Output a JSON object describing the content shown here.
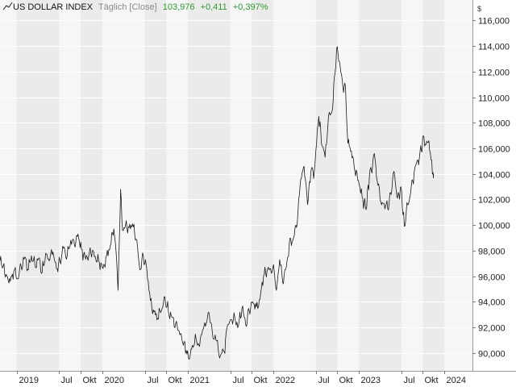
{
  "header": {
    "icon": "line-chart-icon",
    "symbol": "US DOLLAR INDEX",
    "mode": "Täglich [Close]",
    "last": "103,976",
    "change": "+0,411",
    "change_pct": "+0,397%",
    "change_color": "#2a9d2a"
  },
  "chart_data": {
    "type": "line",
    "title": "US DOLLAR INDEX",
    "currency_label": "$",
    "y_axis_side": "right",
    "grid": true,
    "ylim": [
      88.6,
      117.6
    ],
    "xlim": [
      "2018-10-22",
      "2024-04-30"
    ],
    "y_ticks": [
      {
        "value": 90,
        "label": "90,000"
      },
      {
        "value": 92,
        "label": "92,000"
      },
      {
        "value": 94,
        "label": "94,000"
      },
      {
        "value": 96,
        "label": "96,000"
      },
      {
        "value": 98,
        "label": "98,000"
      },
      {
        "value": 100,
        "label": "100,000"
      },
      {
        "value": 102,
        "label": "102,000"
      },
      {
        "value": 104,
        "label": "104,000"
      },
      {
        "value": 106,
        "label": "106,000"
      },
      {
        "value": 108,
        "label": "108,000"
      },
      {
        "value": 110,
        "label": "110,000"
      },
      {
        "value": 112,
        "label": "112,000"
      },
      {
        "value": 114,
        "label": "114,000"
      },
      {
        "value": 116,
        "label": "116,000"
      }
    ],
    "x_ticks": [
      {
        "date": "2019-01-01",
        "label": "2019"
      },
      {
        "date": "2019-07-01",
        "label": "Jul"
      },
      {
        "date": "2019-10-01",
        "label": "Okt"
      },
      {
        "date": "2020-01-01",
        "label": "2020"
      },
      {
        "date": "2020-07-01",
        "label": "Jul"
      },
      {
        "date": "2020-10-01",
        "label": "Okt"
      },
      {
        "date": "2021-01-01",
        "label": "2021"
      },
      {
        "date": "2021-07-01",
        "label": "Jul"
      },
      {
        "date": "2021-10-01",
        "label": "Okt"
      },
      {
        "date": "2022-01-01",
        "label": "2022"
      },
      {
        "date": "2022-07-01",
        "label": "Jul"
      },
      {
        "date": "2022-10-01",
        "label": "Okt"
      },
      {
        "date": "2023-01-01",
        "label": "2023"
      },
      {
        "date": "2023-07-01",
        "label": "Jul"
      },
      {
        "date": "2023-10-01",
        "label": "Okt"
      },
      {
        "date": "2024-01-01",
        "label": "2024"
      }
    ],
    "series": [
      {
        "color": "#1a1a1a",
        "points": [
          [
            "2018-10-22",
            97.2
          ],
          [
            "2018-11-05",
            96.8
          ],
          [
            "2018-11-20",
            96.0
          ],
          [
            "2018-12-05",
            95.6
          ],
          [
            "2018-12-20",
            96.4
          ],
          [
            "2019-01-05",
            95.8
          ],
          [
            "2019-01-20",
            96.8
          ],
          [
            "2019-02-05",
            97.5
          ],
          [
            "2019-02-20",
            96.5
          ],
          [
            "2019-03-05",
            97.6
          ],
          [
            "2019-03-20",
            96.9
          ],
          [
            "2019-04-05",
            97.4
          ],
          [
            "2019-04-20",
            96.3
          ],
          [
            "2019-05-05",
            97.8
          ],
          [
            "2019-05-20",
            97.2
          ],
          [
            "2019-06-05",
            97.9
          ],
          [
            "2019-06-20",
            96.6
          ],
          [
            "2019-07-05",
            97.2
          ],
          [
            "2019-07-20",
            98.2
          ],
          [
            "2019-08-05",
            97.6
          ],
          [
            "2019-08-20",
            98.8
          ],
          [
            "2019-09-05",
            98.4
          ],
          [
            "2019-09-20",
            99.3
          ],
          [
            "2019-10-05",
            98.1
          ],
          [
            "2019-10-20",
            97.5
          ],
          [
            "2019-11-05",
            97.6
          ],
          [
            "2019-11-20",
            98.0
          ],
          [
            "2019-12-05",
            97.3
          ],
          [
            "2019-12-20",
            97.1
          ],
          [
            "2020-01-05",
            96.6
          ],
          [
            "2020-01-20",
            97.6
          ],
          [
            "2020-02-05",
            98.4
          ],
          [
            "2020-02-20",
            99.7
          ],
          [
            "2020-03-01",
            97.8
          ],
          [
            "2020-03-09",
            94.9
          ],
          [
            "2020-03-20",
            102.8
          ],
          [
            "2020-03-28",
            99.6
          ],
          [
            "2020-04-10",
            100.0
          ],
          [
            "2020-04-25",
            99.8
          ],
          [
            "2020-05-10",
            100.1
          ],
          [
            "2020-05-25",
            98.9
          ],
          [
            "2020-06-10",
            96.5
          ],
          [
            "2020-06-25",
            97.6
          ],
          [
            "2020-07-10",
            96.5
          ],
          [
            "2020-07-25",
            94.1
          ],
          [
            "2020-08-10",
            93.2
          ],
          [
            "2020-08-25",
            92.7
          ],
          [
            "2020-09-10",
            93.3
          ],
          [
            "2020-09-25",
            94.4
          ],
          [
            "2020-10-10",
            93.2
          ],
          [
            "2020-10-25",
            92.8
          ],
          [
            "2020-11-10",
            92.3
          ],
          [
            "2020-11-25",
            91.7
          ],
          [
            "2020-12-10",
            90.8
          ],
          [
            "2020-12-25",
            90.2
          ],
          [
            "2021-01-06",
            89.5
          ],
          [
            "2021-01-20",
            90.6
          ],
          [
            "2021-02-05",
            91.1
          ],
          [
            "2021-02-20",
            90.5
          ],
          [
            "2021-03-05",
            91.8
          ],
          [
            "2021-03-20",
            92.3
          ],
          [
            "2021-03-31",
            93.2
          ],
          [
            "2021-04-15",
            91.7
          ],
          [
            "2021-05-01",
            91.0
          ],
          [
            "2021-05-20",
            89.8
          ],
          [
            "2021-06-05",
            90.1
          ],
          [
            "2021-06-20",
            92.2
          ],
          [
            "2021-07-05",
            92.6
          ],
          [
            "2021-07-20",
            92.8
          ],
          [
            "2021-08-05",
            92.1
          ],
          [
            "2021-08-20",
            93.5
          ],
          [
            "2021-09-05",
            92.2
          ],
          [
            "2021-09-20",
            93.3
          ],
          [
            "2021-10-05",
            94.0
          ],
          [
            "2021-10-20",
            93.6
          ],
          [
            "2021-11-05",
            94.2
          ],
          [
            "2021-11-20",
            96.0
          ],
          [
            "2021-12-05",
            96.4
          ],
          [
            "2021-12-20",
            96.6
          ],
          [
            "2022-01-05",
            96.3
          ],
          [
            "2022-01-14",
            94.9
          ],
          [
            "2022-01-28",
            97.3
          ],
          [
            "2022-02-10",
            95.5
          ],
          [
            "2022-02-25",
            96.7
          ],
          [
            "2022-03-10",
            98.6
          ],
          [
            "2022-03-25",
            98.8
          ],
          [
            "2022-04-10",
            99.8
          ],
          [
            "2022-04-28",
            103.6
          ],
          [
            "2022-05-12",
            104.6
          ],
          [
            "2022-05-27",
            101.6
          ],
          [
            "2022-06-10",
            104.1
          ],
          [
            "2022-06-25",
            104.2
          ],
          [
            "2022-07-14",
            108.5
          ],
          [
            "2022-07-28",
            106.2
          ],
          [
            "2022-08-10",
            105.3
          ],
          [
            "2022-08-25",
            108.6
          ],
          [
            "2022-09-10",
            109.0
          ],
          [
            "2022-09-28",
            113.8
          ],
          [
            "2022-10-10",
            112.8
          ],
          [
            "2022-10-25",
            110.8
          ],
          [
            "2022-11-05",
            110.8
          ],
          [
            "2022-11-15",
            106.4
          ],
          [
            "2022-11-30",
            105.8
          ],
          [
            "2022-12-15",
            104.2
          ],
          [
            "2022-12-30",
            103.5
          ],
          [
            "2023-01-15",
            102.2
          ],
          [
            "2023-02-01",
            101.2
          ],
          [
            "2023-02-15",
            103.8
          ],
          [
            "2023-03-01",
            104.8
          ],
          [
            "2023-03-08",
            105.6
          ],
          [
            "2023-03-20",
            103.5
          ],
          [
            "2023-04-05",
            101.8
          ],
          [
            "2023-04-25",
            101.5
          ],
          [
            "2023-05-10",
            101.6
          ],
          [
            "2023-05-31",
            104.2
          ],
          [
            "2023-06-15",
            102.1
          ],
          [
            "2023-06-30",
            103.0
          ],
          [
            "2023-07-14",
            99.9
          ],
          [
            "2023-07-28",
            101.6
          ],
          [
            "2023-08-10",
            102.5
          ],
          [
            "2023-08-25",
            104.1
          ],
          [
            "2023-09-10",
            105.1
          ],
          [
            "2023-09-25",
            105.8
          ],
          [
            "2023-10-03",
            107.0
          ],
          [
            "2023-10-15",
            106.3
          ],
          [
            "2023-10-27",
            106.6
          ],
          [
            "2023-11-05",
            105.1
          ],
          [
            "2023-11-14",
            104.1
          ],
          [
            "2023-11-16",
            103.976
          ]
        ]
      }
    ]
  }
}
